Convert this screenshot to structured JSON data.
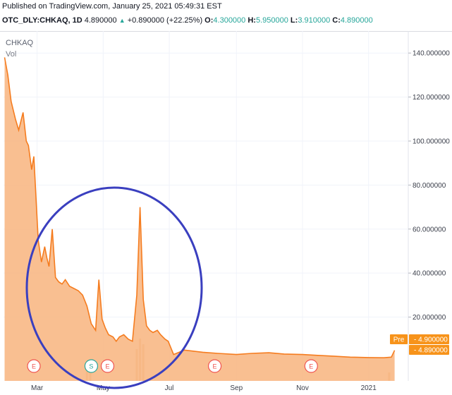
{
  "header": {
    "published": "Published on TradingView.com, January 25, 2021 05:49:31 EST",
    "symbol": "OTC_DLY:CHKAQ, 1D",
    "last": "4.890000",
    "change": "+0.890000 (+22.25%)",
    "open_label": "O:",
    "open": "4.300000",
    "high_label": "H:",
    "high": "5.950000",
    "low_label": "L:",
    "low": "3.910000",
    "close_label": "C:",
    "close": "4.890000"
  },
  "legend": {
    "symbol": "CHKAQ",
    "volume": "Vol"
  },
  "chart_data": {
    "type": "area",
    "title": "CHKAQ",
    "colors": {
      "area": "#f8b47e",
      "line": "#f57c1f",
      "volume": "#e3b17b",
      "circle": "#3a3fbf",
      "price_tag": "#f7931a"
    },
    "x_tick_labels": [
      "Mar",
      "May",
      "Jul",
      "Sep",
      "Nov",
      "2021"
    ],
    "y_tick_labels": [
      "140.000000",
      "120.000000",
      "100.000000",
      "80.000000",
      "60.000000",
      "40.000000",
      "20.000000"
    ],
    "ylim": [
      -9,
      150
    ],
    "x": [
      "2020-01-31",
      "2020-02-03",
      "2020-02-06",
      "2020-02-10",
      "2020-02-13",
      "2020-02-17",
      "2020-02-20",
      "2020-02-22",
      "2020-02-25",
      "2020-02-27",
      "2020-03-02",
      "2020-03-05",
      "2020-03-08",
      "2020-03-10",
      "2020-03-12",
      "2020-03-15",
      "2020-03-18",
      "2020-03-21",
      "2020-03-24",
      "2020-03-27",
      "2020-03-31",
      "2020-04-04",
      "2020-04-08",
      "2020-04-12",
      "2020-04-16",
      "2020-04-20",
      "2020-04-24",
      "2020-04-27",
      "2020-04-30",
      "2020-05-03",
      "2020-05-06",
      "2020-05-10",
      "2020-05-13",
      "2020-05-16",
      "2020-05-20",
      "2020-05-24",
      "2020-05-28",
      "2020-06-01",
      "2020-06-04",
      "2020-06-07",
      "2020-06-10",
      "2020-06-13",
      "2020-06-16",
      "2020-06-20",
      "2020-06-23",
      "2020-06-27",
      "2020-06-30",
      "2020-07-05",
      "2020-07-15",
      "2020-08-01",
      "2020-08-15",
      "2020-09-01",
      "2020-09-15",
      "2020-10-01",
      "2020-10-15",
      "2020-11-01",
      "2020-11-15",
      "2020-12-01",
      "2020-12-15",
      "2021-01-01",
      "2021-01-15",
      "2021-01-22",
      "2021-01-25"
    ],
    "series": [
      {
        "values": [
          138,
          130,
          118,
          110,
          105,
          113,
          100,
          98,
          87,
          93,
          55,
          45,
          52,
          47,
          43,
          60,
          38,
          36,
          35,
          37,
          34,
          33,
          32,
          30,
          25,
          17,
          14,
          37,
          19,
          15,
          12,
          11,
          9,
          11,
          12,
          10,
          9,
          30,
          70,
          28,
          16,
          14,
          13,
          14,
          12,
          10,
          9,
          3,
          5,
          4,
          3.5,
          3,
          3.5,
          3.8,
          3.2,
          3,
          2.6,
          2.2,
          1.8,
          1.6,
          1.5,
          1.8,
          4.89
        ]
      }
    ],
    "volume_spikes": [
      "2020-04-16",
      "2020-04-19",
      "2020-06-01",
      "2020-06-04",
      "2020-06-07",
      "2021-01-20"
    ],
    "events": [
      {
        "label": "E",
        "date": "2020-02-27",
        "color": "#ef5350"
      },
      {
        "label": "S",
        "date": "2020-04-20",
        "color": "#26a69a"
      },
      {
        "label": "E",
        "date": "2020-05-05",
        "color": "#ef5350"
      },
      {
        "label": "E",
        "date": "2020-08-12",
        "color": "#ef5350"
      },
      {
        "label": "E",
        "date": "2020-11-09",
        "color": "#ef5350"
      }
    ],
    "price_tags": [
      {
        "prefix": "Pre",
        "value": "4.900000"
      },
      {
        "prefix": "",
        "value": "4.890000"
      }
    ],
    "annotation": "hand-drawn circle around Mar–Jul 2020 price action"
  }
}
